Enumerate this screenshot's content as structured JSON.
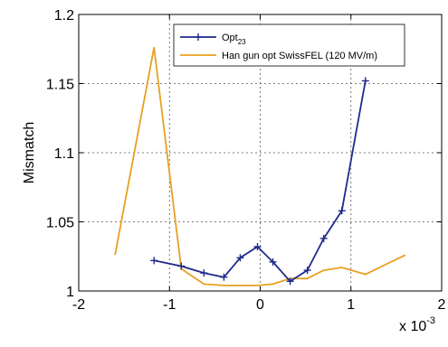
{
  "chart_data": {
    "type": "line",
    "title": "",
    "xlabel": "",
    "ylabel": "Mismatch",
    "x_multiplier": {
      "base": "x 10",
      "exponent": "-3"
    },
    "xlim": [
      -2,
      2
    ],
    "ylim": [
      1,
      1.2
    ],
    "x_ticks": [
      -2,
      -1,
      0,
      1,
      2
    ],
    "x_tick_labels": [
      "-2",
      "-1",
      "0",
      "1",
      "2"
    ],
    "y_ticks": [
      1,
      1.05,
      1.1,
      1.15,
      1.2
    ],
    "y_tick_labels": [
      "1",
      "1.05",
      "1.1",
      "1.15",
      "1.2"
    ],
    "grid": true,
    "legend_position": "top-right",
    "series": [
      {
        "name": "Opt23",
        "name_base": "Opt",
        "name_sub": "23",
        "color": "#1f2a8a",
        "marker": "plus",
        "x": [
          -1.17,
          -0.87,
          -0.62,
          -0.4,
          -0.22,
          -0.03,
          0.14,
          0.33,
          0.52,
          0.7,
          0.9,
          1.16
        ],
        "y": [
          1.022,
          1.018,
          1.013,
          1.01,
          1.024,
          1.032,
          1.021,
          1.007,
          1.015,
          1.038,
          1.058,
          1.152
        ]
      },
      {
        "name": "Han gun opt SwissFEL (120 MV/m)",
        "color": "#e8a020",
        "marker": "none",
        "x": [
          -1.6,
          -1.17,
          -0.87,
          -0.62,
          -0.4,
          -0.22,
          -0.03,
          0.14,
          0.33,
          0.52,
          0.7,
          0.9,
          1.16,
          1.6
        ],
        "y": [
          1.026,
          1.176,
          1.016,
          1.005,
          1.004,
          1.004,
          1.004,
          1.005,
          1.009,
          1.009,
          1.015,
          1.017,
          1.012,
          1.026
        ]
      }
    ]
  }
}
